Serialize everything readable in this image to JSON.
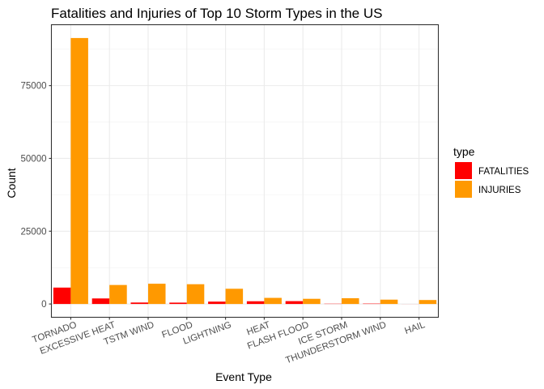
{
  "chart_data": {
    "type": "bar",
    "title": "Fatalities and Injuries of Top 10 Storm Types in the US",
    "xlabel": "Event Type",
    "ylabel": "Count",
    "categories": [
      "TORNADO",
      "EXCESSIVE HEAT",
      "TSTM WIND",
      "FLOOD",
      "LIGHTNING",
      "HEAT",
      "FLASH FLOOD",
      "ICE STORM",
      "THUNDERSTORM WIND",
      "HAIL"
    ],
    "series": [
      {
        "name": "FATALITIES",
        "color": "#ff0000",
        "values": [
          5633,
          1903,
          504,
          470,
          816,
          937,
          978,
          89,
          133,
          15
        ]
      },
      {
        "name": "INJURIES",
        "color": "#ff9900",
        "values": [
          91346,
          6525,
          6957,
          6789,
          5230,
          2100,
          1777,
          1975,
          1488,
          1361
        ]
      }
    ],
    "ylim": [
      -4567,
      95913
    ],
    "yticks": [
      0,
      25000,
      50000,
      75000
    ],
    "ytick_labels": [
      "0",
      "25000",
      "50000",
      "75000"
    ],
    "grid": true,
    "legend": {
      "title": "type",
      "position": "right"
    }
  }
}
